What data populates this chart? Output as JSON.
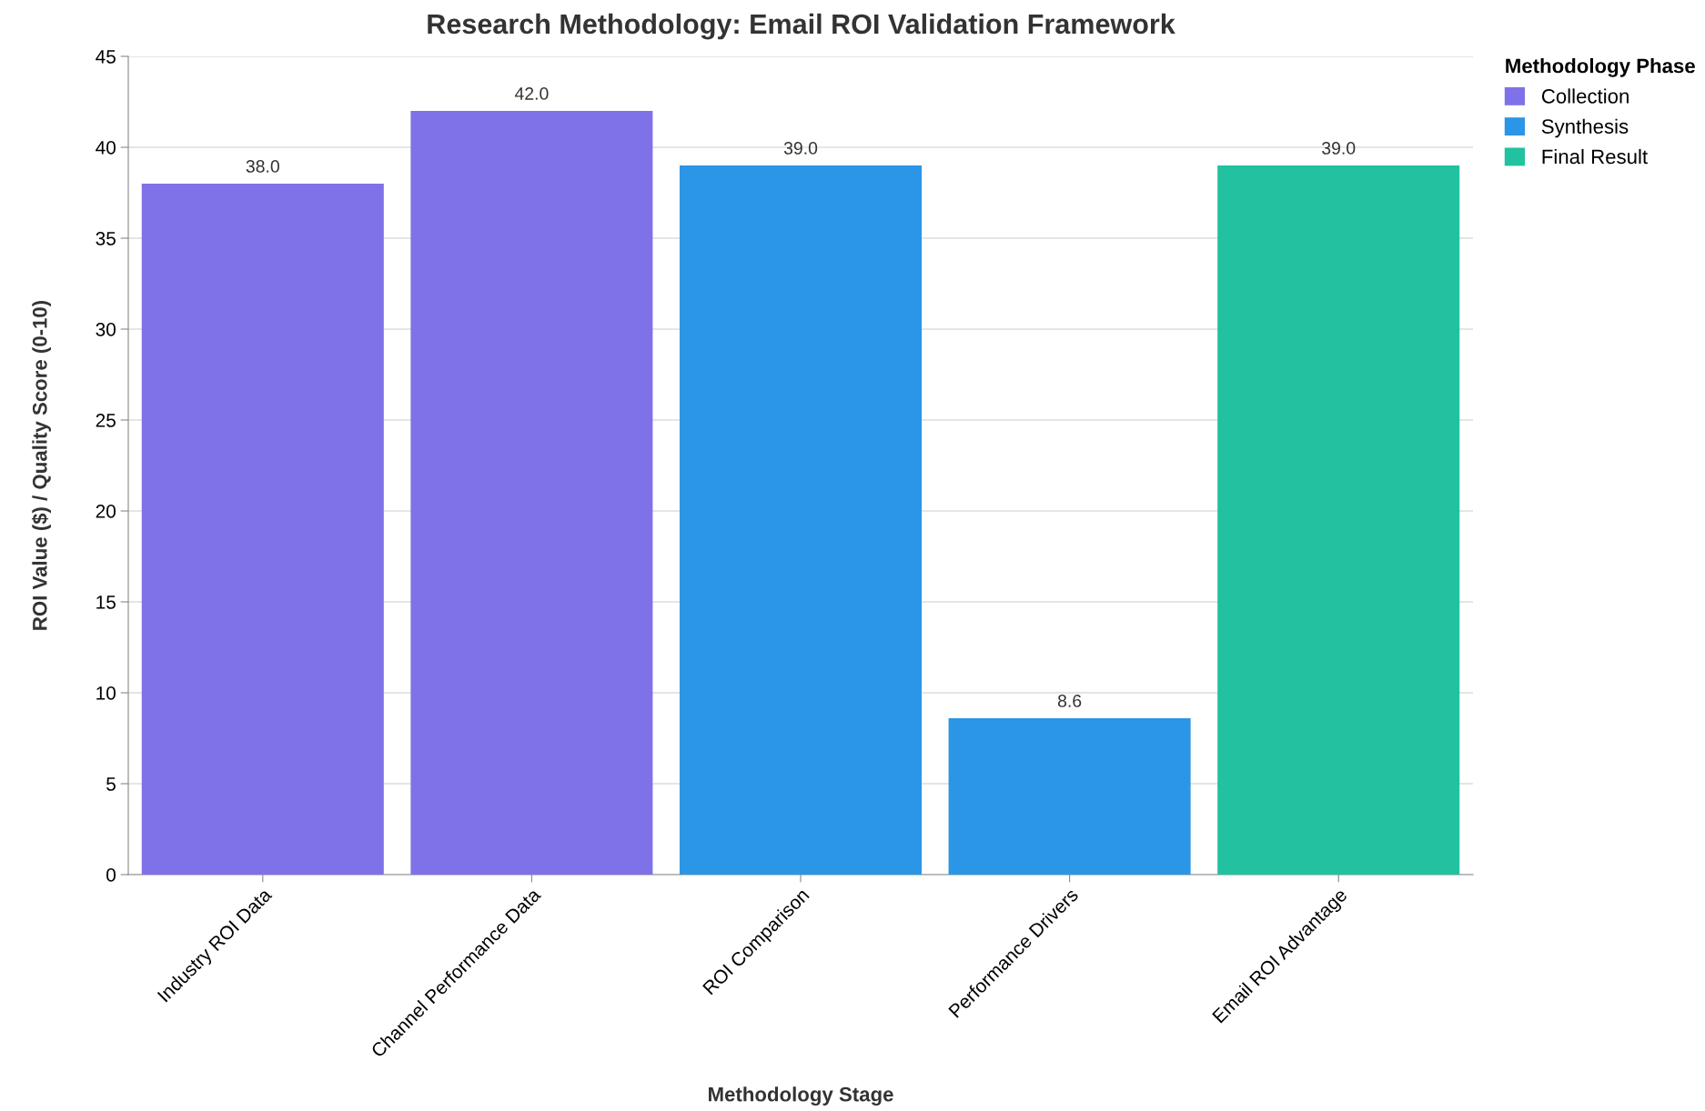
{
  "chart_data": {
    "type": "bar",
    "title": "Research Methodology: Email ROI Validation Framework",
    "xlabel": "Methodology Stage",
    "ylabel": "ROI Value ($) / Quality Score (0-10)",
    "legend_title": "Methodology Phase",
    "categories": [
      "Industry ROI Data",
      "Channel Performance Data",
      "ROI Comparison",
      "Performance Drivers",
      "Email ROI Advantage"
    ],
    "series": [
      {
        "name": "Collection",
        "color": "#7f72e8",
        "values": [
          38.0,
          42.0,
          null,
          null,
          null
        ]
      },
      {
        "name": "Synthesis",
        "color": "#2b95e6",
        "values": [
          null,
          null,
          39.0,
          8.6,
          null
        ]
      },
      {
        "name": "Final Result",
        "color": "#22c1a0",
        "values": [
          null,
          null,
          null,
          null,
          39.0
        ]
      }
    ],
    "value_labels": [
      "38.0",
      "42.0",
      "39.0",
      "8.6",
      "39.0"
    ],
    "ylim": [
      0,
      45
    ],
    "yticks": [
      0,
      5,
      10,
      15,
      20,
      25,
      30,
      35,
      40,
      45
    ],
    "grid": "y",
    "legend": "right"
  }
}
